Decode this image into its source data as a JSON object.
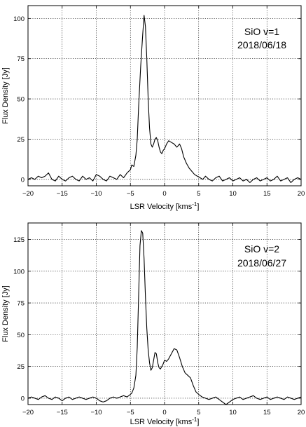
{
  "chart_data": [
    {
      "type": "line",
      "xlabel": "LSR Velocity [kms",
      "xlabel_sup": "-1",
      "xlabel_end": "]",
      "ylabel": "Flux Density [Jy]",
      "xlim": [
        -20,
        20
      ],
      "ylim": [
        -4,
        108
      ],
      "xticks": [
        -20,
        -15,
        -10,
        -5,
        0,
        5,
        10,
        15,
        20
      ],
      "xtick_labels": [
        "−20",
        "−15",
        "−10",
        "−5",
        "0",
        "5",
        "10",
        "15",
        "20"
      ],
      "yticks": [
        0,
        25,
        50,
        75,
        100
      ],
      "ytick_labels": [
        "0",
        "25",
        "50",
        "75",
        "100"
      ],
      "grid": true,
      "annotation": [
        "SiO v=1",
        "2018/06/18"
      ],
      "series": [
        {
          "x": [
            -20,
            -19.5,
            -19,
            -18.5,
            -18,
            -17.5,
            -17,
            -16.5,
            -16,
            -15.5,
            -15,
            -14.5,
            -14,
            -13.5,
            -13,
            -12.5,
            -12,
            -11.5,
            -11,
            -10.5,
            -10,
            -9.5,
            -9,
            -8.5,
            -8,
            -7.5,
            -7,
            -6.5,
            -6,
            -5.5,
            -5,
            -4.8,
            -4.5,
            -4.2,
            -4.0,
            -3.8,
            -3.5,
            -3.2,
            -3.0,
            -2.8,
            -2.6,
            -2.4,
            -2.2,
            -2.0,
            -1.8,
            -1.6,
            -1.4,
            -1.2,
            -1.0,
            -0.8,
            -0.6,
            -0.4,
            -0.2,
            0,
            0.3,
            0.6,
            1.0,
            1.4,
            1.8,
            2.2,
            2.5,
            2.8,
            3.2,
            3.6,
            4.0,
            4.4,
            4.8,
            5.2,
            5.6,
            6.0,
            6.5,
            7,
            7.5,
            8,
            8.5,
            9,
            9.5,
            10,
            10.5,
            11,
            11.5,
            12,
            12.5,
            13,
            13.5,
            14,
            14.5,
            15,
            15.5,
            16,
            16.5,
            17,
            17.5,
            18,
            18.5,
            19,
            19.5,
            20
          ],
          "y": [
            0,
            1,
            0,
            2,
            1,
            2,
            4,
            0,
            -1,
            2,
            0,
            -1,
            1,
            2,
            0,
            -1,
            2,
            0,
            1,
            -1,
            3,
            2,
            0,
            -1,
            2,
            1,
            0,
            3,
            1,
            4,
            6,
            9,
            8,
            15,
            25,
            45,
            70,
            90,
            102,
            95,
            75,
            50,
            32,
            22,
            20,
            22,
            25,
            26,
            24,
            20,
            17,
            16,
            18,
            19,
            22,
            24,
            23,
            22,
            20,
            22,
            19,
            14,
            10,
            7,
            5,
            3,
            2,
            1,
            0,
            2,
            0,
            -1,
            1,
            2,
            -1,
            0,
            1,
            -1,
            0,
            1,
            -1,
            0,
            -2,
            0,
            1,
            -1,
            0,
            1,
            -1,
            0,
            2,
            -1,
            0,
            1,
            -2,
            0,
            1,
            0
          ]
        }
      ]
    },
    {
      "type": "line",
      "xlabel": "LSR Velocity [kms",
      "xlabel_sup": "-1",
      "xlabel_end": "]",
      "ylabel": "Flux Density [Jy]",
      "xlim": [
        -20,
        20
      ],
      "ylim": [
        -5,
        138
      ],
      "xticks": [
        -20,
        -15,
        -10,
        -5,
        0,
        5,
        10,
        15,
        20
      ],
      "xtick_labels": [
        "−20",
        "−15",
        "−10",
        "−5",
        "0",
        "5",
        "10",
        "15",
        "20"
      ],
      "yticks": [
        0,
        25,
        50,
        75,
        100,
        125
      ],
      "ytick_labels": [
        "0",
        "25",
        "50",
        "75",
        "100",
        "125"
      ],
      "grid": true,
      "annotation": [
        "SiO v=2",
        "2018/06/27"
      ],
      "series": [
        {
          "x": [
            -20,
            -19.5,
            -19,
            -18.5,
            -18,
            -17.5,
            -17,
            -16.5,
            -16,
            -15.5,
            -15,
            -14.5,
            -14,
            -13.5,
            -13,
            -12.5,
            -12,
            -11.5,
            -11,
            -10.5,
            -10,
            -9.5,
            -9,
            -8.5,
            -8,
            -7.5,
            -7,
            -6.5,
            -6,
            -5.5,
            -5,
            -4.8,
            -4.5,
            -4.2,
            -4.0,
            -3.8,
            -3.6,
            -3.4,
            -3.2,
            -3.0,
            -2.8,
            -2.6,
            -2.4,
            -2.2,
            -2.0,
            -1.8,
            -1.6,
            -1.4,
            -1.2,
            -1.0,
            -0.8,
            -0.6,
            -0.4,
            -0.2,
            0,
            0.3,
            0.6,
            1.0,
            1.4,
            1.8,
            2.2,
            2.6,
            3.0,
            3.4,
            3.8,
            4.2,
            4.6,
            5.0,
            5.5,
            6,
            6.5,
            7,
            7.5,
            8,
            8.5,
            9,
            9.5,
            10,
            10.5,
            11,
            11.5,
            12,
            12.5,
            13,
            13.5,
            14,
            14.5,
            15,
            15.5,
            16,
            16.5,
            17,
            17.5,
            18,
            18.5,
            19,
            19.5,
            20
          ],
          "y": [
            0,
            1,
            0,
            -1,
            1,
            2,
            0,
            -1,
            1,
            0,
            -2,
            0,
            1,
            -1,
            0,
            1,
            0,
            -1,
            0,
            1,
            0,
            -2,
            -3,
            -2,
            0,
            1,
            0,
            1,
            2,
            1,
            3,
            4,
            8,
            18,
            40,
            80,
            120,
            132,
            130,
            110,
            80,
            55,
            38,
            28,
            22,
            24,
            30,
            36,
            35,
            28,
            24,
            23,
            25,
            27,
            30,
            29,
            31,
            35,
            39,
            38,
            32,
            25,
            20,
            18,
            16,
            10,
            5,
            3,
            1,
            0,
            -1,
            0,
            1,
            -1,
            -3,
            -5,
            -3,
            -1,
            0,
            1,
            -1,
            0,
            1,
            2,
            0,
            -1,
            0,
            1,
            -1,
            0,
            1,
            0,
            -1,
            1,
            0,
            -1,
            0,
            1
          ]
        }
      ]
    }
  ]
}
